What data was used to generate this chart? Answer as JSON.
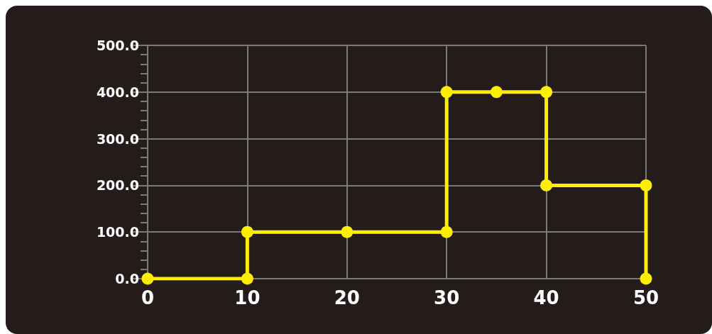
{
  "chart_data": {
    "type": "line",
    "x": [
      0,
      10,
      10,
      20,
      30,
      30,
      35,
      40,
      40,
      50,
      50
    ],
    "series": [
      {
        "color": "#ffee00",
        "values": [
          0,
          0,
          100,
          100,
          100,
          400,
          400,
          400,
          200,
          200,
          0
        ]
      }
    ],
    "xlim": [
      0,
      50
    ],
    "xticks": [
      0,
      10,
      20,
      30,
      40,
      50
    ],
    "ylim": [
      0,
      500
    ],
    "yticks": [
      {
        "value": 0,
        "label": "0.0"
      },
      {
        "value": 100,
        "label": "100.0"
      },
      {
        "value": 200,
        "label": "200.0"
      },
      {
        "value": 300,
        "label": "300.0"
      },
      {
        "value": 400,
        "label": "400.0"
      },
      {
        "value": 500,
        "label": "500.0"
      }
    ],
    "grid": true,
    "marker": "circle",
    "line_style": "solid"
  }
}
